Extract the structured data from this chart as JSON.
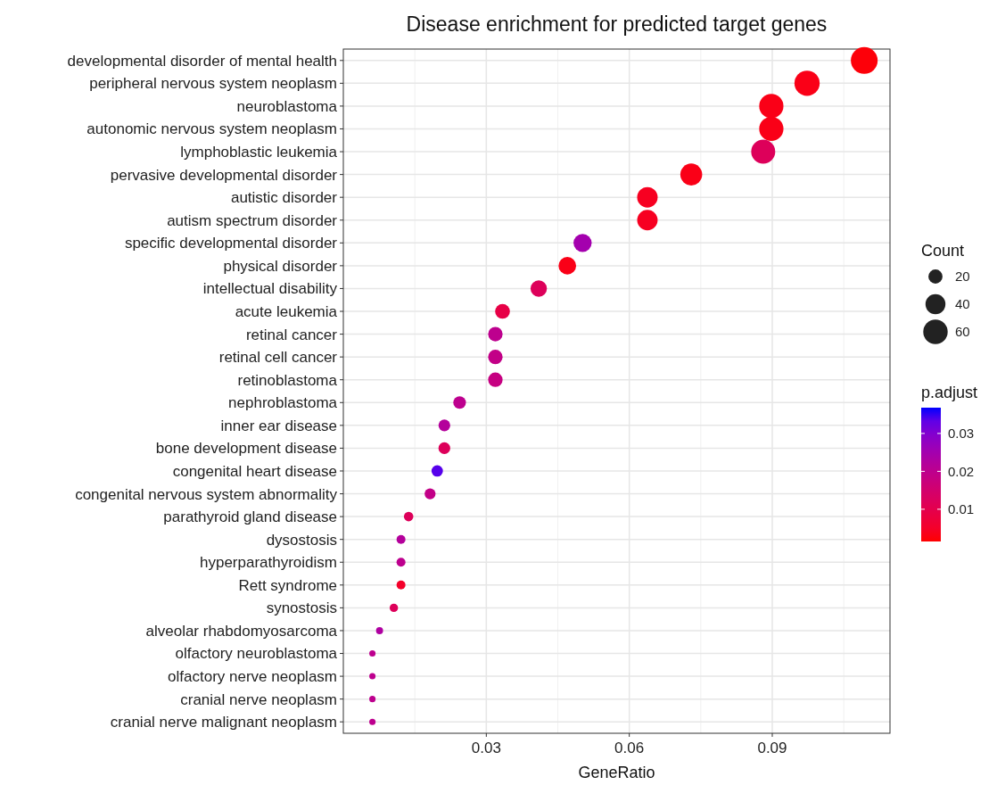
{
  "chart_data": {
    "type": "bubble",
    "title": "Disease enrichment for predicted target genes",
    "xlabel": "GeneRatio",
    "legend_title": "Count",
    "clabel": "p.adjust",
    "categories": [
      "developmental disorder of mental health",
      "peripheral nervous system neoplasm",
      "neuroblastoma",
      "autonomic nervous system neoplasm",
      "lymphoblastic leukemia",
      "pervasive developmental disorder",
      "autistic disorder",
      "autism spectrum disorder",
      "specific developmental disorder",
      "physical disorder",
      "intellectual disability",
      "acute leukemia",
      "retinal cancer",
      "retinal cell cancer",
      "retinoblastoma",
      "nephroblastoma",
      "inner ear disease",
      "bone development disease",
      "congenital heart disease",
      "congenital nervous system abnormality",
      "parathyroid gland disease",
      "dysostosis",
      "hyperparathyroidism",
      "Rett syndrome",
      "synostosis",
      "alveolar rhabdomyosarcoma",
      "olfactory neuroblastoma",
      "olfactory nerve neoplasm",
      "cranial nerve neoplasm",
      "cranial nerve malignant neoplasm"
    ],
    "orientation": "horizontal",
    "values": [
      0.1093,
      0.0973,
      0.0898,
      0.0898,
      0.0881,
      0.073,
      0.0638,
      0.0638,
      0.0502,
      0.047,
      0.041,
      0.0334,
      0.0319,
      0.0319,
      0.0319,
      0.0244,
      0.0212,
      0.0212,
      0.0197,
      0.0182,
      0.0137,
      0.0121,
      0.0121,
      0.0121,
      0.0106,
      0.0076,
      0.0061,
      0.0061,
      0.0061,
      0.0061
    ],
    "sizes": [
      72,
      64,
      59,
      59,
      58,
      48,
      42,
      42,
      33,
      31,
      27,
      22,
      21,
      21,
      21,
      16,
      14,
      14,
      13,
      12,
      9,
      8,
      8,
      8,
      7,
      5,
      4,
      4,
      4,
      4
    ],
    "cvalues": [
      0.002,
      0.003,
      0.003,
      0.003,
      0.012,
      0.003,
      0.004,
      0.004,
      0.025,
      0.003,
      0.012,
      0.009,
      0.02,
      0.019,
      0.018,
      0.02,
      0.022,
      0.012,
      0.034,
      0.019,
      0.012,
      0.022,
      0.02,
      0.005,
      0.012,
      0.023,
      0.02,
      0.02,
      0.02,
      0.02
    ],
    "size_legend": [
      20,
      40,
      60
    ],
    "xlim": [
      0,
      0.1147
    ],
    "xticks": [
      0.03,
      0.06,
      0.09
    ],
    "clim": [
      0.0015,
      0.0368
    ],
    "cticks": [
      0.01,
      0.02,
      0.03
    ],
    "grid": true
  }
}
